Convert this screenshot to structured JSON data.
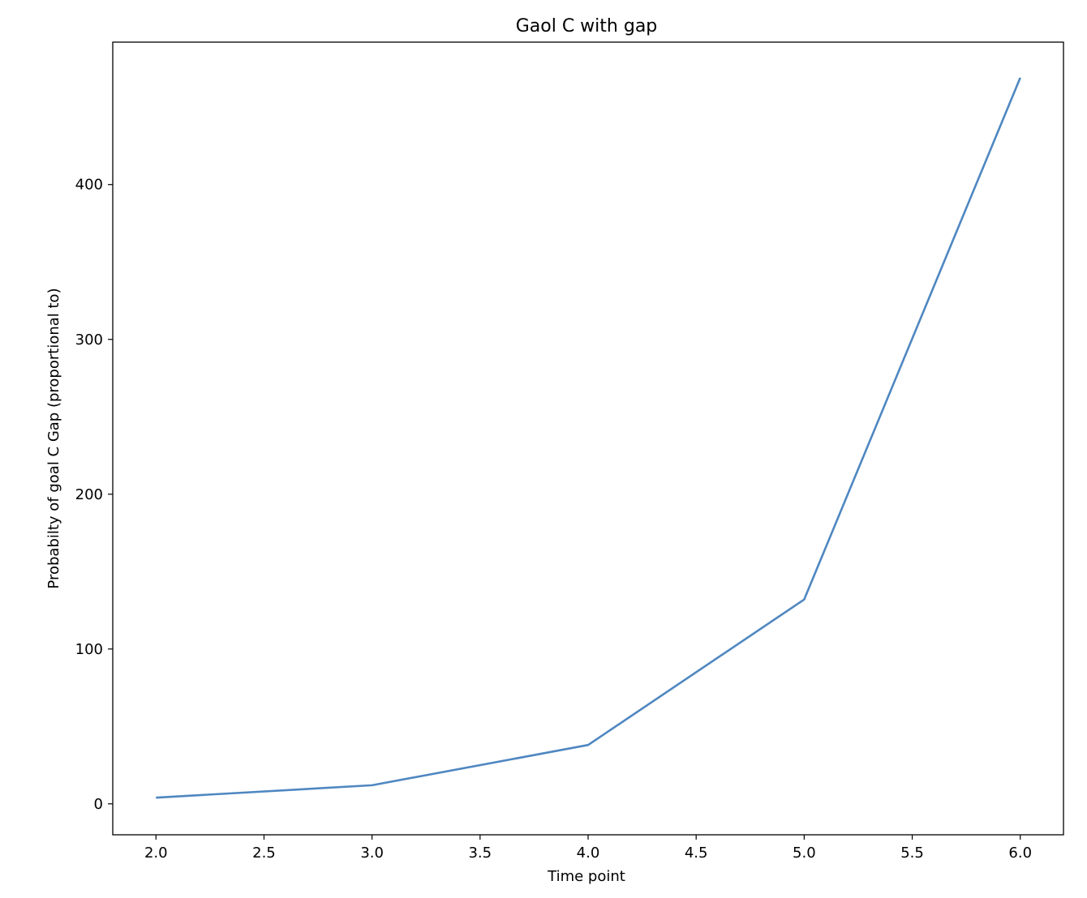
{
  "chart_data": {
    "type": "line",
    "title": "Gaol C with gap",
    "xlabel": "Time point",
    "ylabel": "Probabilty of goal C Gap (proportional to)",
    "x": [
      2.0,
      3.0,
      4.0,
      5.0,
      6.0
    ],
    "series": [
      {
        "values": [
          4,
          12,
          38,
          132,
          469
        ],
        "color": "#4f87c1"
      }
    ],
    "xticks": [
      "2.0",
      "2.5",
      "3.0",
      "3.5",
      "4.0",
      "4.5",
      "5.0",
      "5.5",
      "6.0"
    ],
    "yticks": [
      "0",
      "100",
      "200",
      "300",
      "400"
    ],
    "xlim": [
      1.8,
      6.2
    ],
    "ylim": [
      -20,
      492
    ],
    "grid": false
  }
}
